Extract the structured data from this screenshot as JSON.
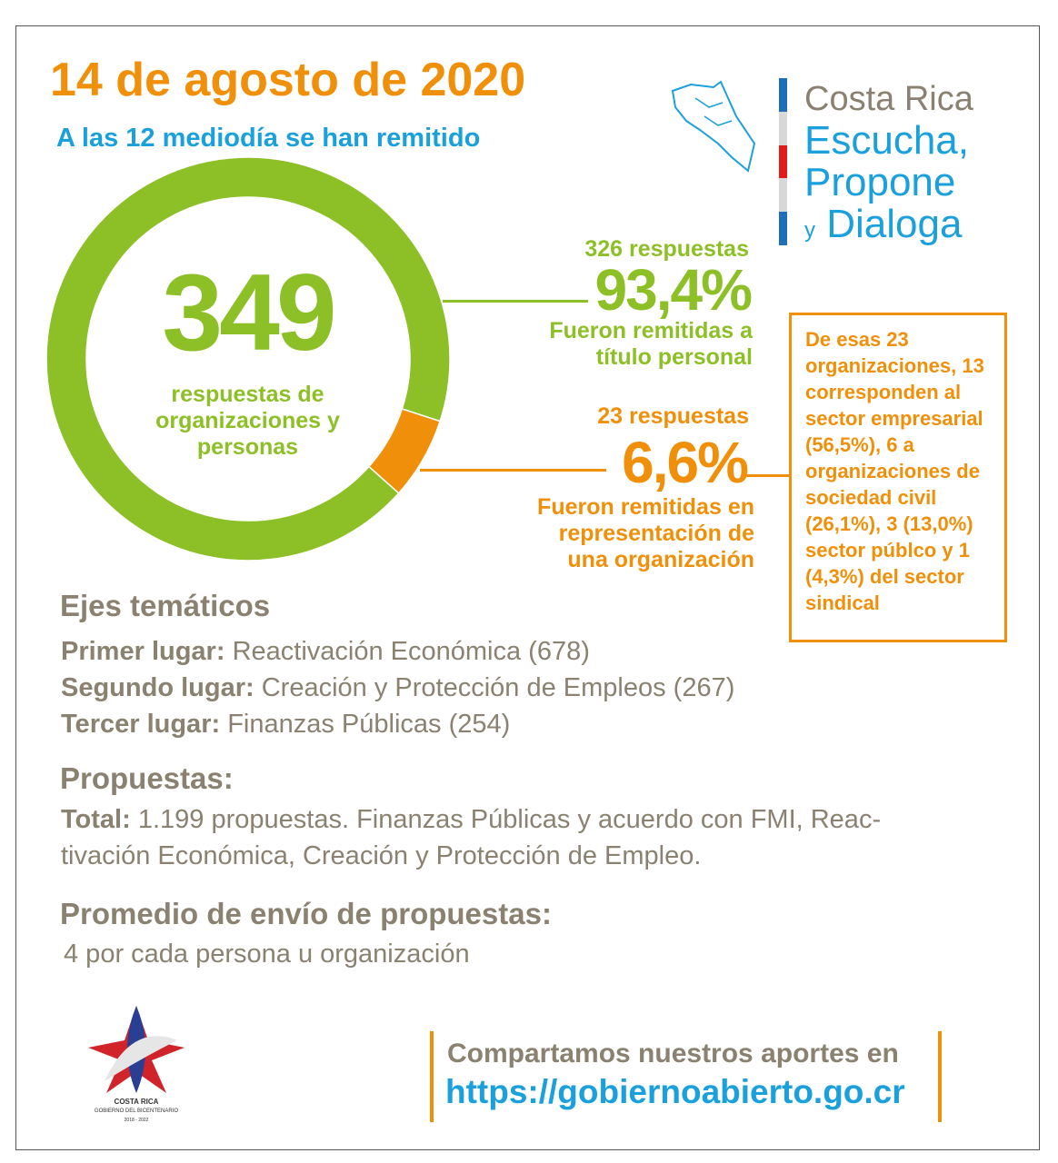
{
  "header": {
    "title": "14 de agosto de 2020",
    "subtitle": "A las 12 mediodía se han remitido"
  },
  "logo": {
    "line1": "Costa Rica",
    "line2": "Escucha,",
    "line3": "Propone",
    "line4_y": "y",
    "line4": "Dialoga",
    "stripe_colors": [
      "#1e6fb8",
      "#d8d8d8",
      "#e11a1a",
      "#d8d8d8",
      "#1e6fb8"
    ]
  },
  "total": {
    "value": "349",
    "caption": "respuestas de organizaciones y personas"
  },
  "personal": {
    "count": "326 respuestas",
    "percent": "93,4%",
    "caption_1": "Fueron remitidas a",
    "caption_2": "título personal"
  },
  "organization": {
    "count": "23 respuestas",
    "percent": "6,6%",
    "caption_1": "Fueron remitidas en",
    "caption_2": "representación de",
    "caption_3": "una organización"
  },
  "org_box": {
    "text": "De esas 23 organizaciones, 13 corresponden al sector empresarial (56,5%), 6 a organizaciones de sociedad civil (26,1%), 3 (13,0%) sector públco y 1 (4,3%) del sector sindical"
  },
  "ejes": {
    "heading": "Ejes temáticos",
    "items": [
      {
        "label": "Primer lugar:",
        "value": "Reactivación Económica (678)"
      },
      {
        "label": "Segundo lugar:",
        "value": "Creación y Protección de Empleos (267)"
      },
      {
        "label": "Tercer lugar:",
        "value": "Finanzas Públicas (254)"
      }
    ]
  },
  "propuestas": {
    "heading": "Propuestas:",
    "label": "Total:",
    "text_1": "1.199 propuestas. Finanzas Públicas y acuerdo con FMI, Reac-",
    "text_2": "tivación Económica, Creación y Protección de Empleo."
  },
  "promedio": {
    "heading": "Promedio de envío de propuestas:",
    "text": "4 por cada persona u organización"
  },
  "gov_logo": {
    "line1": "COSTA RICA",
    "line2": "GOBIERNO DEL BICENTENARIO",
    "line3": "2018 - 2022"
  },
  "share": {
    "text": "Compartamos nuestros aportes en",
    "link": "https://gobiernoabierto.go.cr"
  },
  "colors": {
    "green": "#8dbf26",
    "orange": "#f0900a",
    "blue": "#1aa0dc",
    "gray": "#8a8170"
  },
  "chart_data": {
    "type": "pie",
    "donut": true,
    "categories": [
      "A título personal",
      "En representación de una organización"
    ],
    "values": [
      326,
      23
    ],
    "percent": [
      93.4,
      6.6
    ],
    "colors": [
      "#8dbf26",
      "#f0900a"
    ]
  }
}
